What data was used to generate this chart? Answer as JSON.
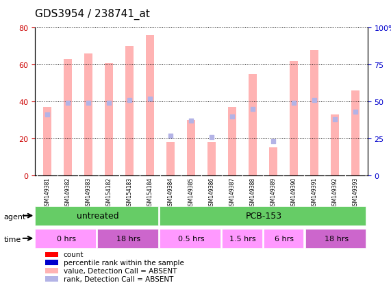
{
  "title": "GDS3954 / 238741_at",
  "samples": [
    "GSM149381",
    "GSM149382",
    "GSM149383",
    "GSM154182",
    "GSM154183",
    "GSM154184",
    "GSM149384",
    "GSM149385",
    "GSM149386",
    "GSM149387",
    "GSM149388",
    "GSM149389",
    "GSM149390",
    "GSM149391",
    "GSM149392",
    "GSM149393"
  ],
  "bar_values": [
    37,
    63,
    66,
    61,
    70,
    76,
    18,
    30,
    18,
    37,
    55,
    15,
    62,
    68,
    33,
    46
  ],
  "rank_values": [
    41,
    49,
    49,
    49,
    51,
    52,
    27,
    37,
    26,
    40,
    45,
    23,
    49,
    51,
    38,
    43
  ],
  "bar_color_absent": "#FFB3B3",
  "rank_color_absent": "#B3B3E6",
  "bar_color_present": "#FF0000",
  "rank_color_present": "#0000CC",
  "ylim_left": [
    0,
    80
  ],
  "ylim_right": [
    0,
    100
  ],
  "yticks_left": [
    0,
    20,
    40,
    60,
    80
  ],
  "yticks_right": [
    0,
    25,
    50,
    75,
    100
  ],
  "ytick_labels_right": [
    "0",
    "25",
    "50",
    "75",
    "100%"
  ],
  "agent_groups": [
    {
      "label": "untreated",
      "start": 0,
      "end": 6,
      "color": "#66CC66"
    },
    {
      "label": "PCB-153",
      "start": 6,
      "end": 16,
      "color": "#66CC66"
    }
  ],
  "time_groups": [
    {
      "label": "0 hrs",
      "start": 0,
      "end": 3,
      "color": "#FF99FF"
    },
    {
      "label": "18 hrs",
      "start": 3,
      "end": 6,
      "color": "#CC66CC"
    },
    {
      "label": "0.5 hrs",
      "start": 6,
      "end": 9,
      "color": "#FF99FF"
    },
    {
      "label": "1.5 hrs",
      "start": 9,
      "end": 11,
      "color": "#FF99FF"
    },
    {
      "label": "6 hrs",
      "start": 11,
      "end": 13,
      "color": "#FF99FF"
    },
    {
      "label": "18 hrs",
      "start": 13,
      "end": 16,
      "color": "#CC66CC"
    }
  ],
  "agent_label": "agent",
  "time_label": "time",
  "legend_items": [
    {
      "label": "count",
      "color": "#FF0000",
      "marker": "s"
    },
    {
      "label": "percentile rank within the sample",
      "color": "#0000CC",
      "marker": "s"
    },
    {
      "label": "value, Detection Call = ABSENT",
      "color": "#FFB3B3",
      "marker": "s"
    },
    {
      "label": "rank, Detection Call = ABSENT",
      "color": "#B3B3E6",
      "marker": "s"
    }
  ],
  "bar_width": 0.4,
  "grid_color": "#000000",
  "bg_color": "#FFFFFF",
  "plot_bg_color": "#FFFFFF",
  "left_tick_color": "#CC0000",
  "right_tick_color": "#0000CC",
  "sample_bg_color": "#C0C0C0"
}
